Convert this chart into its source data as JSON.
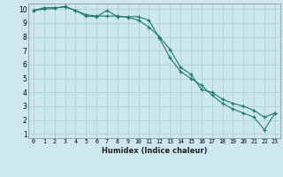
{
  "xlabel": "Humidex (Indice chaleur)",
  "ylabel": "",
  "bg_color": "#cce8ee",
  "line_color": "#1a7a6e",
  "grid_color": "#aacccc",
  "xlim": [
    -0.5,
    23.5
  ],
  "ylim": [
    0.7,
    10.4
  ],
  "xticks": [
    0,
    1,
    2,
    3,
    4,
    5,
    6,
    7,
    8,
    9,
    10,
    11,
    12,
    13,
    14,
    15,
    16,
    17,
    18,
    19,
    20,
    21,
    22,
    23
  ],
  "yticks": [
    1,
    2,
    3,
    4,
    5,
    6,
    7,
    8,
    9,
    10
  ],
  "line1_x": [
    0,
    1,
    2,
    3,
    4,
    5,
    6,
    7,
    8,
    9,
    10,
    11,
    12,
    13,
    14,
    15,
    16,
    17,
    18,
    19,
    20,
    21,
    22,
    23
  ],
  "line1_y": [
    9.9,
    10.1,
    10.1,
    10.15,
    9.9,
    9.5,
    9.45,
    9.9,
    9.45,
    9.45,
    9.45,
    9.2,
    7.9,
    6.5,
    5.5,
    5.0,
    4.5,
    3.8,
    3.2,
    2.8,
    2.5,
    2.2,
    1.3,
    2.5
  ],
  "line2_x": [
    0,
    1,
    2,
    3,
    4,
    5,
    6,
    7,
    8,
    9,
    10,
    11,
    12,
    13,
    14,
    15,
    16,
    17,
    18,
    19,
    20,
    21,
    22,
    23
  ],
  "line2_y": [
    9.9,
    10.0,
    10.05,
    10.2,
    9.9,
    9.6,
    9.5,
    9.5,
    9.5,
    9.4,
    9.2,
    8.7,
    8.0,
    7.1,
    5.8,
    5.3,
    4.2,
    4.0,
    3.5,
    3.2,
    3.0,
    2.7,
    2.2,
    2.5
  ],
  "xlabel_fontsize": 6.0,
  "tick_fontsize": 4.8,
  "ytick_fontsize": 5.5
}
